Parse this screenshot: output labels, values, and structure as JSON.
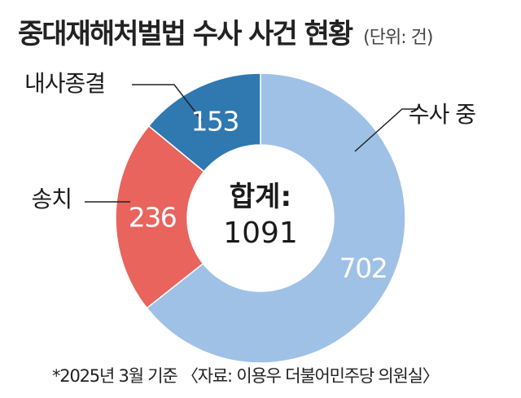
{
  "header": {
    "title": "중대재해처벌법 수사 사건 현황",
    "unit": "(단위: 건)"
  },
  "chart_data": {
    "type": "pie",
    "variant": "donut",
    "categories": [
      "수사 중",
      "송치",
      "내사종결"
    ],
    "values": [
      702,
      236,
      153
    ],
    "colors": [
      "#9fc1e6",
      "#e8645c",
      "#2f78b0"
    ],
    "value_label_colors": [
      "#ffffff",
      "#ffffff",
      "#ffffff"
    ],
    "center_label": "합계:",
    "center_value": "1091",
    "start_angle_deg": 0,
    "direction": "clockwise",
    "legend": "callout-labels"
  },
  "footnote": "*2025년 3월 기준 〈자료: 이용우 더불어민주당 의원실〉"
}
